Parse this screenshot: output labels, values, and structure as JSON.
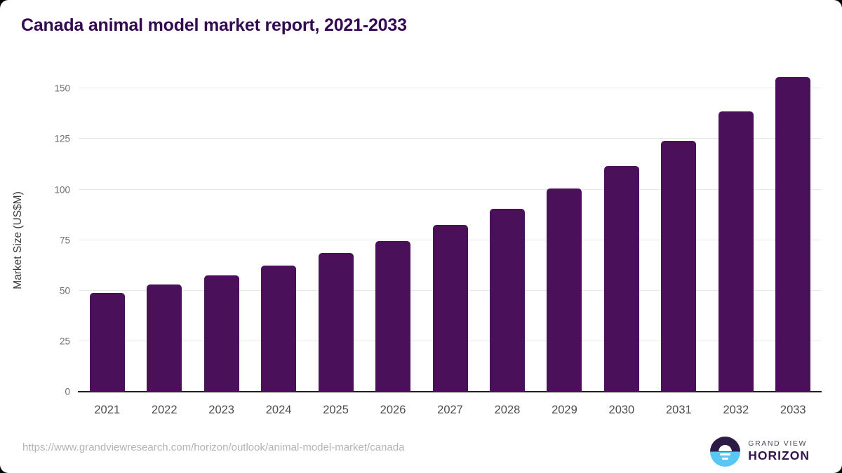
{
  "header": {
    "title": "Canada animal model market report, 2021-2033"
  },
  "chart_data": {
    "type": "bar",
    "title": "Canada animal model market report, 2021-2033",
    "categories": [
      "2021",
      "2022",
      "2023",
      "2024",
      "2025",
      "2026",
      "2027",
      "2028",
      "2029",
      "2030",
      "2031",
      "2032",
      "2033"
    ],
    "values": [
      49,
      53,
      57.5,
      62.5,
      68.5,
      74.5,
      82.5,
      90.5,
      100.5,
      111.5,
      124,
      138.5,
      155.5
    ],
    "xlabel": "",
    "ylabel": "Market Size (US$M)",
    "ylim": [
      0,
      160.5
    ],
    "yticks": [
      0,
      25,
      50,
      75,
      100,
      125,
      150
    ],
    "grid": "horizontal",
    "legend": "none",
    "bar_color": "#4a1059"
  },
  "footer": {
    "source_url": "https://www.grandviewresearch.com/horizon/outlook/animal-model-market/canada",
    "logo_line1": "GRAND VIEW",
    "logo_line2": "HORIZON"
  },
  "colors": {
    "title": "#330a52",
    "bar": "#4a1059",
    "gridline": "#e8e8e8",
    "axis_line": "#1f1f1f",
    "y_tick_text": "#6e6e6e",
    "x_tick_text": "#4d4d4d",
    "url_text": "#b3b3b3",
    "logo_dark": "#2e1a47",
    "logo_blue": "#58c7f3"
  }
}
